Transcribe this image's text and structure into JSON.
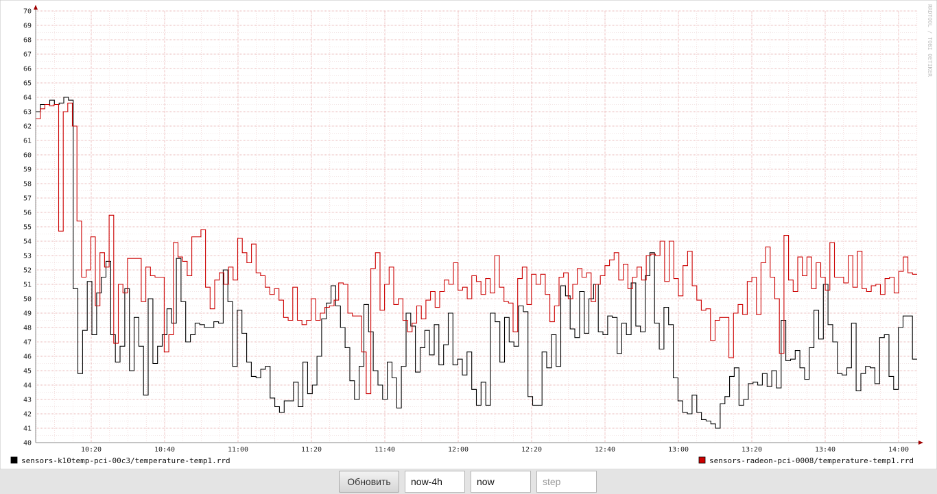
{
  "chart_data": {
    "type": "line",
    "watermark": "RRDTOOL / TOBI OETIKER",
    "ylim": [
      40,
      70
    ],
    "y_ticks": [
      40,
      41,
      42,
      43,
      44,
      45,
      46,
      47,
      48,
      49,
      50,
      51,
      52,
      53,
      54,
      55,
      56,
      57,
      58,
      59,
      60,
      61,
      62,
      63,
      64,
      65,
      66,
      67,
      68,
      69,
      70
    ],
    "x_ticks": [
      "10:20",
      "10:40",
      "11:00",
      "11:20",
      "11:40",
      "12:00",
      "12:20",
      "12:40",
      "13:00",
      "13:20",
      "13:40",
      "14:00"
    ],
    "grid": true,
    "step_line": true,
    "series": [
      {
        "name": "sensors-k10temp-pci-00c3/temperature-temp1.rrd",
        "color": "#000000",
        "values": [
          63,
          63.5,
          63.5,
          63.8,
          63.5,
          63.6,
          64,
          63.8,
          50.7,
          44.8,
          47.8,
          51.2,
          47.5,
          50.4,
          51.5,
          52.6,
          47.5,
          45.6,
          46.7,
          50.7,
          45,
          48.7,
          46.7,
          43.3,
          50,
          45.5,
          46.7,
          47.5,
          49.3,
          48.3,
          52.8,
          49.8,
          47,
          47.5,
          48.3,
          48.2,
          48,
          48,
          48.4,
          48.3,
          52,
          49.8,
          45.3,
          49.2,
          47.6,
          45.6,
          44.6,
          44.5,
          45.1,
          45.3,
          43.1,
          42.5,
          42.1,
          42.9,
          42.9,
          44.2,
          42.5,
          45.6,
          43.4,
          44,
          46,
          48.6,
          49.7,
          50.9,
          49.5,
          48,
          46.6,
          44.3,
          43,
          45.3,
          49.6,
          47.7,
          45,
          44,
          43,
          45.6,
          44.5,
          42.4,
          45.3,
          49,
          48.1,
          44.9,
          46.6,
          47.8,
          46.1,
          48.2,
          45.4,
          46.8,
          49,
          45.4,
          45.8,
          44.7,
          46.3,
          43.7,
          42.6,
          44.2,
          42.6,
          49,
          48.4,
          45.6,
          48.7,
          47,
          46.7,
          49.5,
          49.1,
          43.2,
          42.6,
          42.6,
          46.3,
          45.2,
          47.5,
          45.3,
          50.9,
          50.2,
          47.9,
          47.3,
          50.5,
          47.6,
          50,
          51,
          47.7,
          47.5,
          48.8,
          48.7,
          46.2,
          48.3,
          47.5,
          51.1,
          48.1,
          47.7,
          51.6,
          53.2,
          48.3,
          46.5,
          49.4,
          48.2,
          44.5,
          42.9,
          42.1,
          42,
          43.3,
          42.1,
          41.6,
          41.5,
          41.3,
          41,
          42.7,
          43.2,
          44.6,
          45.2,
          42.6,
          43,
          44.1,
          44.2,
          44,
          44.8,
          43.9,
          45,
          43.8,
          48.5,
          45.7,
          45.8,
          46.4,
          45.2,
          44.4,
          46.6,
          49.2,
          47.2,
          51,
          48.2,
          47,
          44.8,
          44.7,
          45.2,
          48.3,
          43.6,
          44.8,
          45.3,
          45.2,
          44.1,
          47.3,
          47.5,
          44.6,
          43.7,
          48,
          48.8,
          48.8,
          45.8
        ]
      },
      {
        "name": "sensors-radeon-pci-0008/temperature-temp1.rrd",
        "color": "#cc0000",
        "values": [
          62.5,
          63.2,
          63.5,
          63.4,
          63.5,
          54.7,
          63,
          63.6,
          62,
          55.4,
          51.5,
          52,
          54.3,
          49.5,
          53.2,
          52.2,
          55.8,
          46.9,
          51,
          50.4,
          52.8,
          52.8,
          52.8,
          49.8,
          52.2,
          51.6,
          51.5,
          51.5,
          46.3,
          47.5,
          53.9,
          52.9,
          52.6,
          51.6,
          54.3,
          54.3,
          54.8,
          50.8,
          49.3,
          51.3,
          51.8,
          51,
          52.2,
          51.3,
          54.2,
          53.2,
          52.5,
          53.8,
          51.8,
          51.6,
          50.8,
          50.3,
          50.7,
          49.9,
          48.7,
          48.5,
          50.8,
          48.5,
          48.2,
          48.5,
          50,
          48.5,
          49,
          49.4,
          49.5,
          49.9,
          51.1,
          51,
          49,
          48.8,
          48.8,
          46.3,
          43.4,
          52.1,
          53.2,
          49.2,
          51,
          52.2,
          49.6,
          50,
          48.5,
          47.7,
          48.3,
          49.5,
          48.6,
          49.9,
          50.5,
          49.4,
          50.5,
          51.3,
          51,
          52.5,
          50.6,
          50.8,
          50,
          51.6,
          51.2,
          50.3,
          51.4,
          50.4,
          53,
          50.8,
          49.8,
          49.7,
          47.7,
          51.4,
          52.2,
          49.6,
          51.7,
          51,
          51.7,
          50.3,
          48.4,
          49.5,
          51.5,
          51.8,
          50,
          51,
          52.1,
          51.5,
          51.8,
          49.8,
          51,
          51.6,
          52.3,
          52.7,
          53.2,
          51.3,
          52.4,
          50.7,
          51.5,
          52.2,
          51.3,
          53,
          53.1,
          53,
          54,
          51.2,
          54,
          51.4,
          50.2,
          52.3,
          53.3,
          50.9,
          49.9,
          49.2,
          49.3,
          47.1,
          48.5,
          48.7,
          48.7,
          45.9,
          49,
          49.6,
          48.9,
          51.2,
          51.5,
          48.9,
          52.5,
          53.6,
          51.5,
          50,
          46.2,
          54.4,
          51.3,
          50.5,
          52.9,
          51.6,
          52.9,
          50.7,
          52.5,
          51.5,
          50.6,
          53.9,
          51.5,
          51.5,
          51.1,
          53,
          50.8,
          53.3,
          50.7,
          50.5,
          50.9,
          51,
          50.3,
          51.4,
          51.5,
          50.4,
          51.9,
          52.9,
          51.8,
          51.7
        ]
      }
    ]
  },
  "controls": {
    "refresh_label": "Обновить",
    "start_value": "now-4h",
    "end_value": "now",
    "step_placeholder": "step"
  }
}
